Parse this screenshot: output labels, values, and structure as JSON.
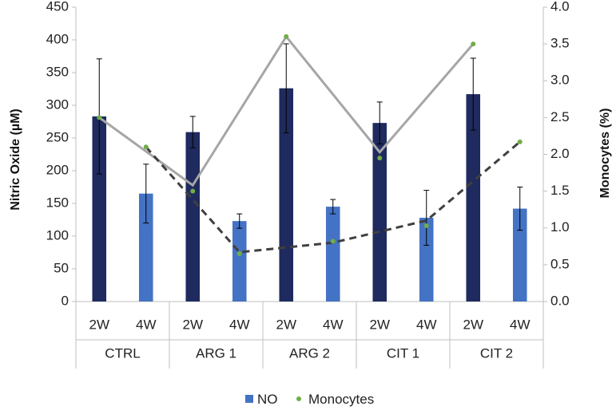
{
  "chart_data": {
    "type": "bar",
    "title": "",
    "groups": [
      "CTRL",
      "ARG 1",
      "ARG 2",
      "CIT 1",
      "CIT 2"
    ],
    "subcategories": [
      "2W",
      "4W"
    ],
    "categories": [
      "CTRL 2W",
      "CTRL 4W",
      "ARG 1 2W",
      "ARG 1 4W",
      "ARG 2 2W",
      "ARG 2 4W",
      "CIT 1 2W",
      "CIT 1 4W",
      "CIT 2 2W",
      "CIT 2 4W"
    ],
    "ylabel": "Nitric Oxide  (µM)",
    "y2label": "Monocytes (%)",
    "ylim": [
      0,
      450
    ],
    "y2lim": [
      0,
      4
    ],
    "yticks": [
      "0",
      "50",
      "100",
      "150",
      "200",
      "250",
      "300",
      "350",
      "400",
      "450"
    ],
    "y2ticks": [
      "0.0",
      "0.5",
      "1.0",
      "1.5",
      "2.0",
      "2.5",
      "3.0",
      "3.5",
      "4.0"
    ],
    "series": [
      {
        "name": "NO",
        "type": "bar",
        "axis": "left",
        "values": [
          283,
          165,
          259,
          123,
          326,
          145,
          273,
          128,
          317,
          142
        ],
        "errors": [
          88,
          45,
          24,
          11,
          68,
          11,
          32,
          42,
          55,
          33
        ],
        "colors": [
          "#1f2a5e",
          "#4472c4",
          "#1f2a5e",
          "#4472c4",
          "#1f2a5e",
          "#4472c4",
          "#1f2a5e",
          "#4472c4",
          "#1f2a5e",
          "#4472c4"
        ]
      },
      {
        "name": "Monocytes",
        "type": "scatter",
        "axis": "right",
        "values": [
          2.5,
          2.1,
          1.5,
          0.65,
          3.6,
          0.82,
          1.95,
          1.03,
          3.5,
          2.17
        ],
        "color": "#70ad47"
      }
    ],
    "trendlines": [
      {
        "name": "2W trend",
        "style": "solid",
        "color": "#a6a6a6",
        "values": [
          2.5,
          1.58,
          3.6,
          2.03,
          3.5
        ]
      },
      {
        "name": "4W trend",
        "style": "dashed",
        "color": "#404040",
        "values": [
          2.1,
          0.67,
          0.8,
          1.1,
          2.17
        ]
      }
    ],
    "legend": {
      "position": "bottom",
      "items": [
        "NO",
        "Monocytes"
      ]
    }
  }
}
